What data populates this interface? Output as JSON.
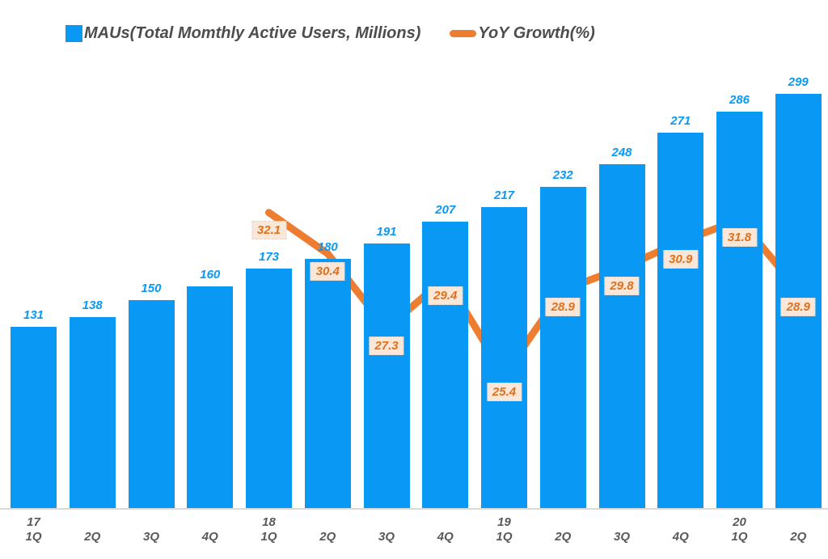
{
  "legend": {
    "bars_label": "MAUs(Total Momthly Active Users, Millions)",
    "line_label": "YoY Growth(%)"
  },
  "colors": {
    "bar": "#0999f5",
    "bar_label": "#0999f5",
    "line": "#ed7d31",
    "line_label_text": "#e0701d",
    "line_label_bg": "#fbe7d8",
    "line_label_border": "#d8d8d8",
    "axis_text": "#595959",
    "legend_text": "#4d4d4d",
    "axis_line": "#d9d9d9"
  },
  "chart_data": {
    "type": "bar",
    "subtype": "combo-bar-line",
    "title": "",
    "xlabel": "",
    "ylabel": "",
    "grid": false,
    "legend_position": "top",
    "categories": [
      {
        "year": "17",
        "quarter": "1Q"
      },
      {
        "year": "",
        "quarter": "2Q"
      },
      {
        "year": "",
        "quarter": "3Q"
      },
      {
        "year": "",
        "quarter": "4Q"
      },
      {
        "year": "18",
        "quarter": "1Q"
      },
      {
        "year": "",
        "quarter": "2Q"
      },
      {
        "year": "",
        "quarter": "3Q"
      },
      {
        "year": "",
        "quarter": "4Q"
      },
      {
        "year": "19",
        "quarter": "1Q"
      },
      {
        "year": "",
        "quarter": "2Q"
      },
      {
        "year": "",
        "quarter": "3Q"
      },
      {
        "year": "",
        "quarter": "4Q"
      },
      {
        "year": "20",
        "quarter": "1Q"
      },
      {
        "year": "",
        "quarter": "2Q"
      }
    ],
    "series": [
      {
        "name": "MAUs(Total Momthly Active Users, Millions)",
        "type": "bar",
        "axis": "left",
        "values": [
          131,
          138,
          150,
          160,
          173,
          180,
          191,
          207,
          217,
          232,
          248,
          271,
          286,
          299
        ]
      },
      {
        "name": "YoY Growth(%)",
        "type": "line",
        "axis": "right",
        "values": [
          null,
          null,
          null,
          null,
          32.1,
          30.4,
          27.3,
          29.4,
          25.4,
          28.9,
          29.8,
          30.9,
          31.8,
          28.9
        ]
      }
    ],
    "bar_ylim": [
      0,
      320
    ],
    "line_ylim": [
      19.9,
      38.2
    ]
  }
}
